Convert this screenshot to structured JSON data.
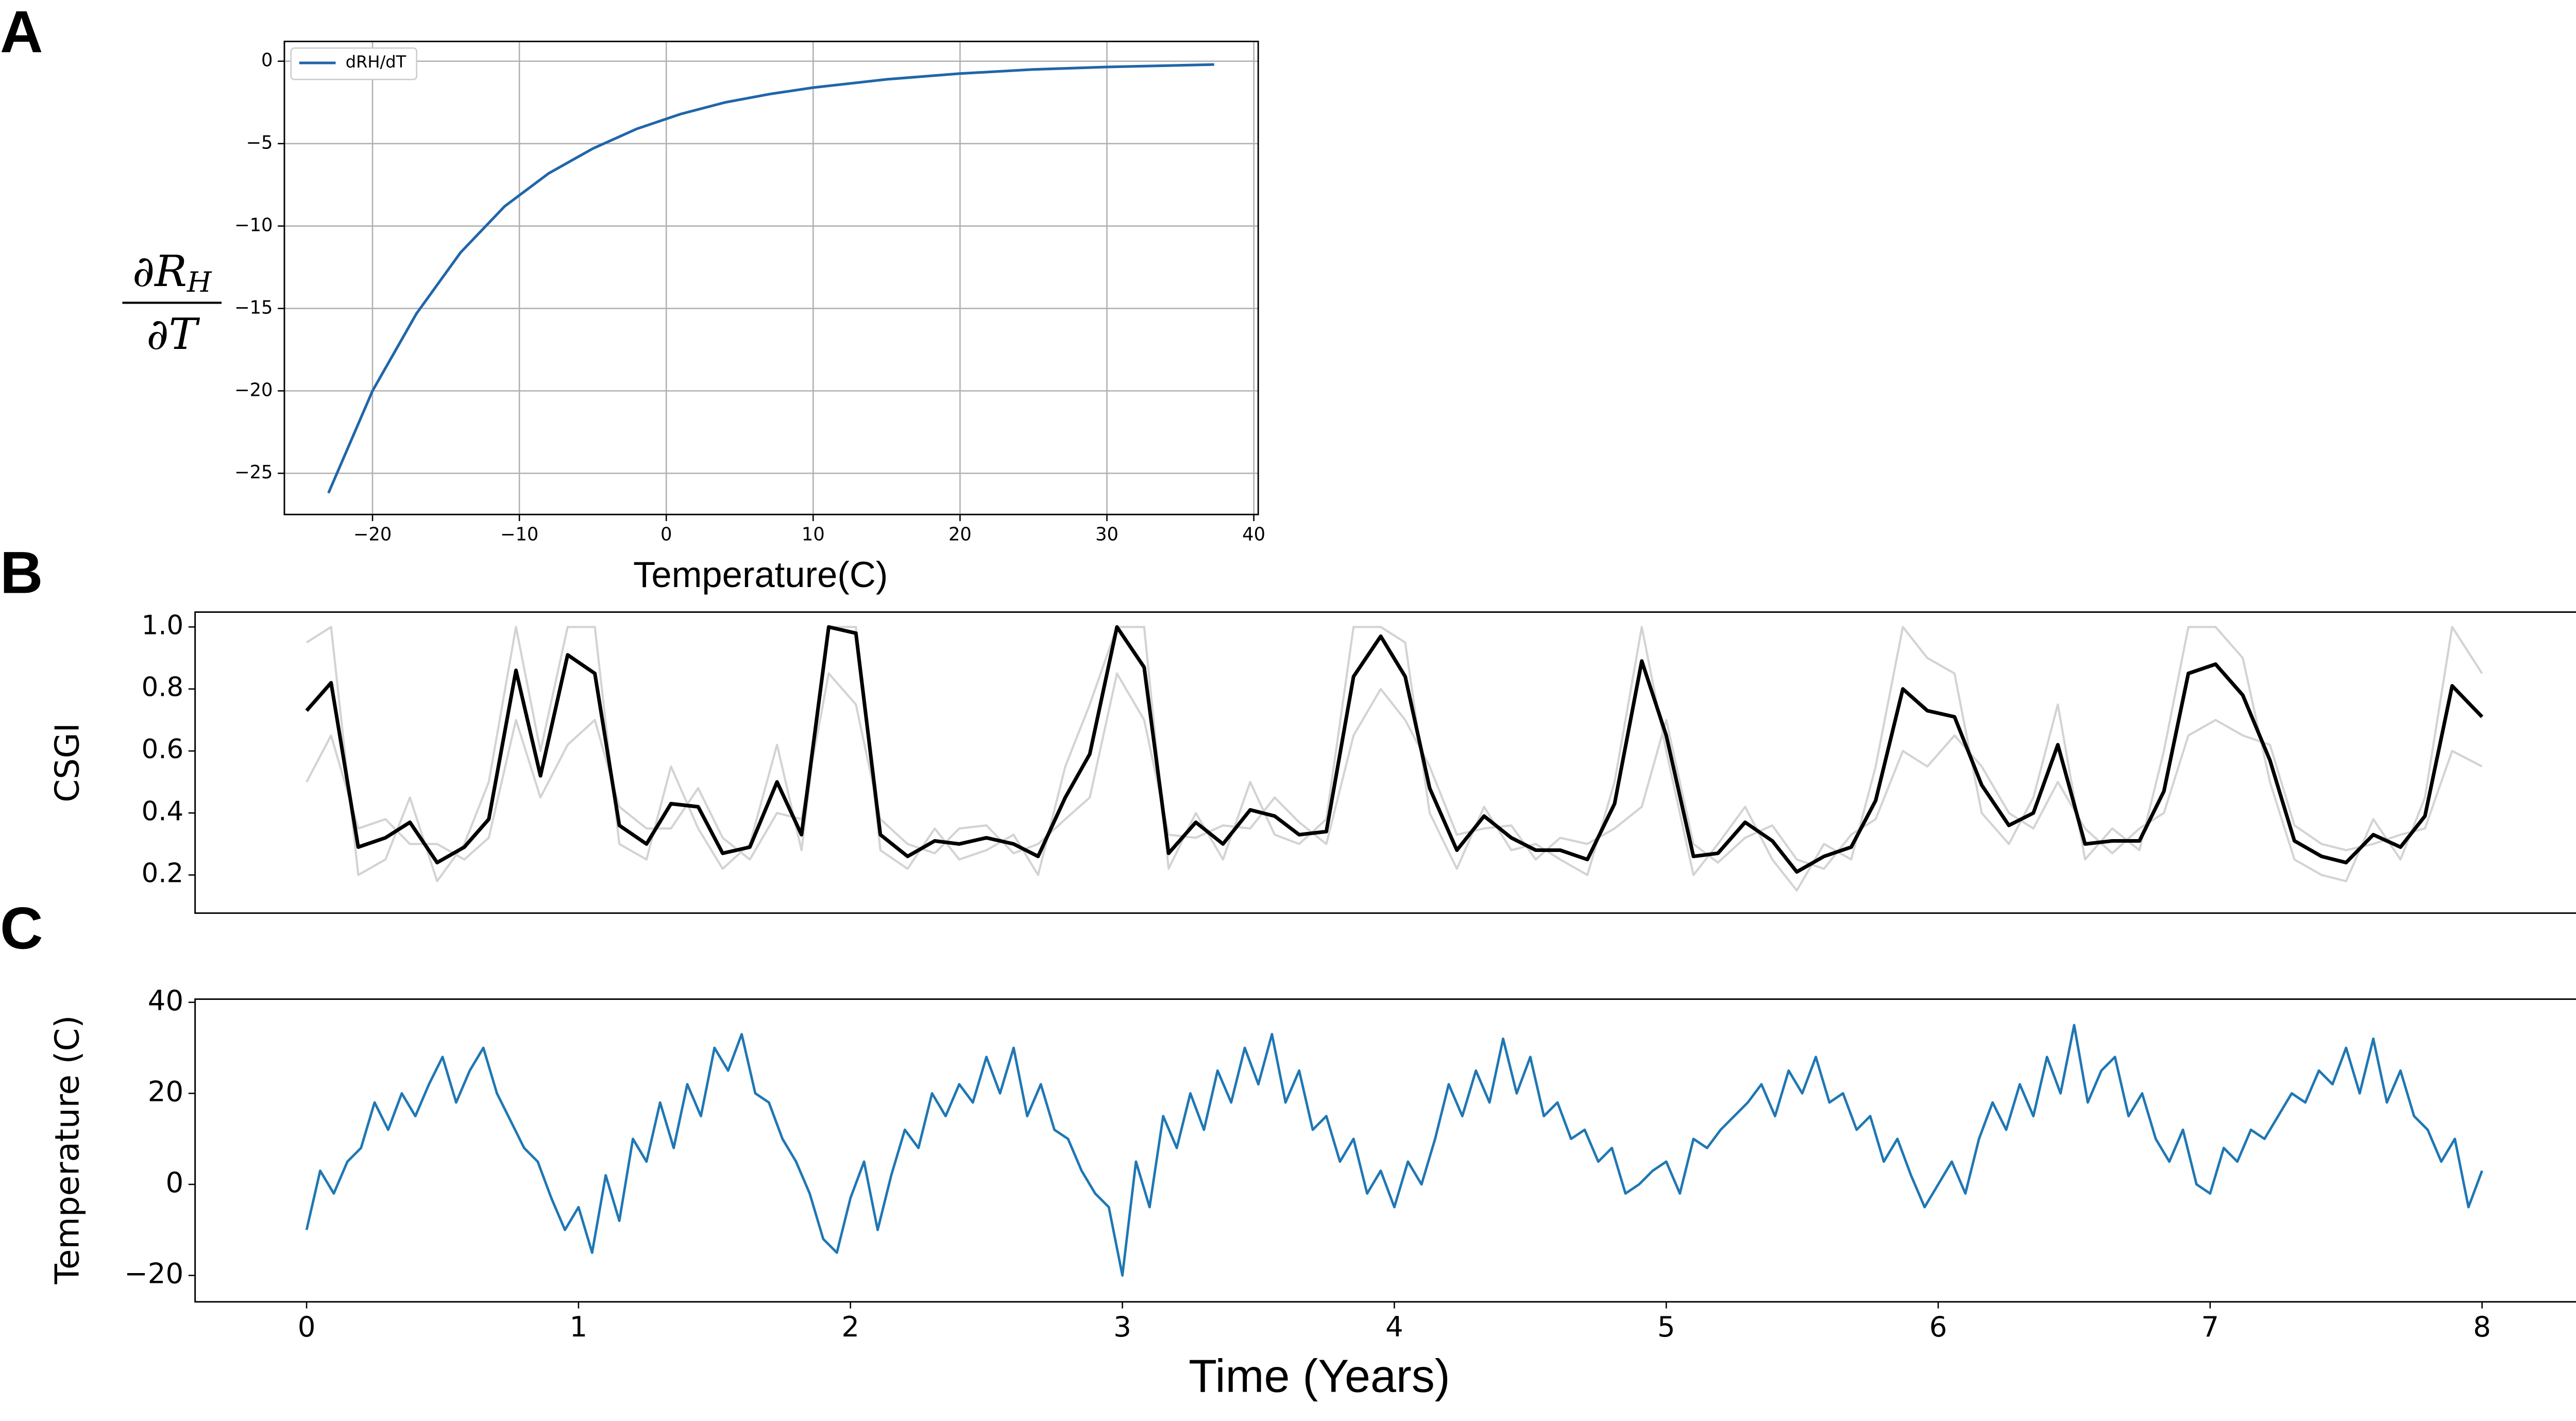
{
  "chart_data": [
    {
      "type": "line",
      "panel": "A",
      "xlabel": "Temperature(C)",
      "ylabel": {
        "numerator": "∂R",
        "subscript": "H",
        "denominator": "∂T"
      },
      "x": [
        -23,
        -20,
        -17,
        -14,
        -11,
        -8,
        -5,
        -2,
        1,
        4,
        7,
        10,
        15,
        20,
        25,
        30,
        37.3
      ],
      "series": [
        {
          "name": "dRH/dT",
          "color": "#2066a8",
          "values": [
            -26.2,
            -20,
            -15.3,
            -11.6,
            -8.8,
            -6.8,
            -5.3,
            -4.1,
            -3.2,
            -2.5,
            -2.0,
            -1.6,
            -1.1,
            -0.75,
            -0.5,
            -0.35,
            -0.2
          ]
        }
      ],
      "xlim": [
        -26.0,
        40.3
      ],
      "ylim": [
        -27.5,
        1.2
      ],
      "xticks": [
        {
          "value": -20,
          "label": "−20"
        },
        {
          "value": -10,
          "label": "−10"
        },
        0,
        10,
        20,
        30,
        40
      ],
      "yticks": [
        0,
        {
          "value": -5,
          "label": "−5"
        },
        {
          "value": -10,
          "label": "−10"
        },
        {
          "value": -15,
          "label": "−15"
        },
        {
          "value": -20,
          "label": "−20"
        },
        {
          "value": -25,
          "label": "−25"
        }
      ],
      "grid": true,
      "legend": "upper-left"
    },
    {
      "type": "line",
      "panel": "B",
      "ylabel": "CSGI",
      "x": [
        0,
        0.09,
        0.19,
        0.29,
        0.38,
        0.48,
        0.58,
        0.67,
        0.77,
        0.86,
        0.96,
        1.06,
        1.15,
        1.25,
        1.34,
        1.44,
        1.53,
        1.63,
        1.73,
        1.82,
        1.92,
        2.02,
        2.11,
        2.21,
        2.31,
        2.4,
        2.5,
        2.6,
        2.69,
        2.79,
        2.88,
        2.98,
        3.08,
        3.17,
        3.27,
        3.37,
        3.47,
        3.56,
        3.65,
        3.75,
        3.85,
        3.95,
        4.04,
        4.13,
        4.23,
        4.33,
        4.43,
        4.52,
        4.61,
        4.71,
        4.81,
        4.91,
        5.0,
        5.1,
        5.19,
        5.29,
        5.39,
        5.48,
        5.58,
        5.68,
        5.77,
        5.87,
        5.96,
        6.06,
        6.16,
        6.26,
        6.35,
        6.44,
        6.54,
        6.64,
        6.74,
        6.83,
        6.92,
        7.02,
        7.12,
        7.22,
        7.31,
        7.41,
        7.5,
        7.6,
        7.7,
        7.79,
        7.89,
        8.0
      ],
      "series": [
        {
          "color": "#d3d3d3",
          "values": [
            0.95,
            1.0,
            0.2,
            0.25,
            0.45,
            0.18,
            0.3,
            0.5,
            1.0,
            0.6,
            1.0,
            1.0,
            0.3,
            0.25,
            0.55,
            0.35,
            0.22,
            0.3,
            0.62,
            0.28,
            1.0,
            1.0,
            0.28,
            0.22,
            0.35,
            0.25,
            0.28,
            0.33,
            0.2,
            0.55,
            0.75,
            1.0,
            1.0,
            0.22,
            0.4,
            0.25,
            0.5,
            0.33,
            0.3,
            0.38,
            1.0,
            1.0,
            0.95,
            0.4,
            0.22,
            0.42,
            0.28,
            0.3,
            0.25,
            0.2,
            0.5,
            1.0,
            0.6,
            0.2,
            0.3,
            0.42,
            0.25,
            0.15,
            0.3,
            0.25,
            0.55,
            1.0,
            0.9,
            0.85,
            0.4,
            0.3,
            0.45,
            0.75,
            0.25,
            0.35,
            0.28,
            0.6,
            1.0,
            1.0,
            0.9,
            0.5,
            0.25,
            0.2,
            0.18,
            0.38,
            0.25,
            0.45,
            1.0,
            0.85
          ]
        },
        {
          "color": "#d3d3d3",
          "values": [
            0.5,
            0.65,
            0.35,
            0.38,
            0.3,
            0.3,
            0.25,
            0.32,
            0.7,
            0.45,
            0.62,
            0.7,
            0.42,
            0.35,
            0.35,
            0.48,
            0.32,
            0.25,
            0.4,
            0.38,
            0.85,
            0.75,
            0.38,
            0.3,
            0.27,
            0.35,
            0.36,
            0.27,
            0.3,
            0.38,
            0.45,
            0.85,
            0.7,
            0.33,
            0.32,
            0.36,
            0.35,
            0.45,
            0.37,
            0.3,
            0.65,
            0.8,
            0.7,
            0.55,
            0.33,
            0.35,
            0.36,
            0.25,
            0.32,
            0.3,
            0.35,
            0.42,
            0.7,
            0.3,
            0.24,
            0.32,
            0.36,
            0.25,
            0.22,
            0.33,
            0.38,
            0.6,
            0.55,
            0.65,
            0.55,
            0.4,
            0.35,
            0.5,
            0.35,
            0.27,
            0.35,
            0.4,
            0.65,
            0.7,
            0.65,
            0.62,
            0.36,
            0.3,
            0.28,
            0.3,
            0.33,
            0.35,
            0.6,
            0.55
          ]
        },
        {
          "color": "#000000",
          "values": [
            0.73,
            0.82,
            0.29,
            0.32,
            0.37,
            0.24,
            0.29,
            0.38,
            0.86,
            0.52,
            0.91,
            0.85,
            0.36,
            0.3,
            0.43,
            0.42,
            0.27,
            0.29,
            0.5,
            0.33,
            1.0,
            0.98,
            0.33,
            0.26,
            0.31,
            0.3,
            0.32,
            0.3,
            0.26,
            0.45,
            0.59,
            1.0,
            0.87,
            0.27,
            0.37,
            0.3,
            0.41,
            0.39,
            0.33,
            0.34,
            0.84,
            0.97,
            0.84,
            0.48,
            0.28,
            0.39,
            0.32,
            0.28,
            0.28,
            0.25,
            0.43,
            0.89,
            0.65,
            0.26,
            0.27,
            0.37,
            0.31,
            0.21,
            0.26,
            0.29,
            0.44,
            0.8,
            0.73,
            0.71,
            0.49,
            0.36,
            0.4,
            0.62,
            0.3,
            0.31,
            0.31,
            0.47,
            0.85,
            0.88,
            0.78,
            0.57,
            0.31,
            0.26,
            0.24,
            0.33,
            0.29,
            0.39,
            0.81,
            0.71
          ]
        }
      ],
      "xlim": [
        -0.41,
        8.4
      ],
      "ylim": [
        0.077,
        1.048
      ],
      "yticks": [
        0.2,
        0.4,
        0.6,
        0.8,
        {
          "value": 1,
          "label": "1.0"
        }
      ],
      "grid": false
    },
    {
      "type": "line",
      "panel": "C",
      "xlabel": "Time (Years)",
      "ylabel": "Temperature (C)",
      "x": [
        0,
        0.05,
        0.1,
        0.15,
        0.2,
        0.25,
        0.3,
        0.35,
        0.4,
        0.45,
        0.5,
        0.55,
        0.6,
        0.65,
        0.7,
        0.75,
        0.8,
        0.85,
        0.9,
        0.95,
        1,
        1.05,
        1.1,
        1.15,
        1.2,
        1.25,
        1.3,
        1.35,
        1.4,
        1.45,
        1.5,
        1.55,
        1.6,
        1.65,
        1.7,
        1.75,
        1.8,
        1.85,
        1.9,
        1.95,
        2,
        2.05,
        2.1,
        2.15,
        2.2,
        2.25,
        2.3,
        2.35,
        2.4,
        2.45,
        2.5,
        2.55,
        2.6,
        2.65,
        2.7,
        2.75,
        2.8,
        2.85,
        2.9,
        2.95,
        3,
        3.05,
        3.1,
        3.15,
        3.2,
        3.25,
        3.3,
        3.35,
        3.4,
        3.45,
        3.5,
        3.55,
        3.6,
        3.65,
        3.7,
        3.75,
        3.8,
        3.85,
        3.9,
        3.95,
        4,
        4.05,
        4.1,
        4.15,
        4.2,
        4.25,
        4.3,
        4.35,
        4.4,
        4.45,
        4.5,
        4.55,
        4.6,
        4.65,
        4.7,
        4.75,
        4.8,
        4.85,
        4.9,
        4.95,
        5,
        5.05,
        5.1,
        5.15,
        5.2,
        5.25,
        5.3,
        5.35,
        5.4,
        5.45,
        5.5,
        5.55,
        5.6,
        5.65,
        5.7,
        5.75,
        5.8,
        5.85,
        5.9,
        5.95,
        6,
        6.05,
        6.1,
        6.15,
        6.2,
        6.25,
        6.3,
        6.35,
        6.4,
        6.45,
        6.5,
        6.55,
        6.6,
        6.65,
        6.7,
        6.75,
        6.8,
        6.85,
        6.9,
        6.95,
        7,
        7.05,
        7.1,
        7.15,
        7.2,
        7.25,
        7.3,
        7.35,
        7.4,
        7.45,
        7.5,
        7.55,
        7.6,
        7.65,
        7.7,
        7.75,
        7.8,
        7.85,
        7.9,
        7.95,
        8
      ],
      "series": [
        {
          "color": "#1f77b4",
          "values": [
            -10,
            3,
            -2,
            5,
            8,
            18,
            12,
            20,
            15,
            22,
            28,
            18,
            25,
            30,
            20,
            14,
            8,
            5,
            -3,
            -10,
            -5,
            -15,
            2,
            -8,
            10,
            5,
            18,
            8,
            22,
            15,
            30,
            25,
            33,
            20,
            18,
            10,
            5,
            -2,
            -12,
            -15,
            -3,
            5,
            -10,
            2,
            12,
            8,
            20,
            15,
            22,
            18,
            28,
            20,
            30,
            15,
            22,
            12,
            10,
            3,
            -2,
            -5,
            -20,
            5,
            -5,
            15,
            8,
            20,
            12,
            25,
            18,
            30,
            22,
            33,
            18,
            25,
            12,
            15,
            5,
            10,
            -2,
            3,
            -5,
            5,
            0,
            10,
            22,
            15,
            25,
            18,
            32,
            20,
            28,
            15,
            18,
            10,
            12,
            5,
            8,
            -2,
            0,
            3,
            5,
            -2,
            10,
            8,
            12,
            15,
            18,
            22,
            15,
            25,
            20,
            28,
            18,
            20,
            12,
            15,
            5,
            10,
            2,
            -5,
            0,
            5,
            -2,
            10,
            18,
            12,
            22,
            15,
            28,
            20,
            35,
            18,
            25,
            28,
            15,
            20,
            10,
            5,
            12,
            0,
            -2,
            8,
            5,
            12,
            10,
            15,
            20,
            18,
            25,
            22,
            30,
            20,
            32,
            18,
            25,
            15,
            12,
            5,
            10,
            -5,
            3
          ]
        }
      ],
      "xlim": [
        -0.41,
        8.4
      ],
      "ylim": [
        -25.8,
        40.7
      ],
      "xticks": [
        0,
        1,
        2,
        3,
        4,
        5,
        6,
        7,
        8
      ],
      "yticks": [
        {
          "value": -20,
          "label": "−20"
        },
        0,
        20,
        40
      ],
      "grid": false
    }
  ]
}
